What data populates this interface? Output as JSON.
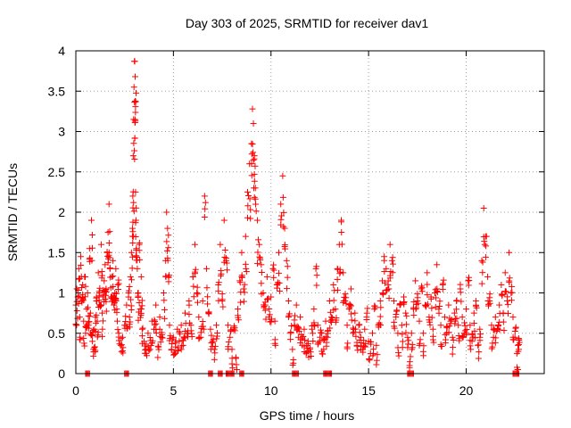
{
  "chart_data": {
    "type": "scatter",
    "title": "Day 303 of 2025, SRMTID for receiver dav1",
    "xlabel": "GPS time / hours",
    "ylabel": "SRMTID / TECUs",
    "xlim": [
      0,
      24
    ],
    "ylim": [
      0,
      4
    ],
    "xticks": [
      0,
      5,
      10,
      15,
      20
    ],
    "xtick_labels": [
      "0",
      "5",
      "10",
      "15",
      "20"
    ],
    "yticks": [
      0,
      0.5,
      1,
      1.5,
      2,
      2.5,
      3,
      3.5,
      4
    ],
    "ytick_labels": [
      "0",
      "0.5",
      "1",
      "1.5",
      "2",
      "2.5",
      "3",
      "3.5",
      "4"
    ],
    "grid": true,
    "marker": "+",
    "color": "#ff0000",
    "series": [
      {
        "name": "dav1",
        "points": [
          [
            0.0,
            0.85
          ],
          [
            0.05,
            1.05
          ],
          [
            0.1,
            0.95
          ],
          [
            0.15,
            1.3
          ],
          [
            0.2,
            0.7
          ],
          [
            0.25,
            1.45
          ],
          [
            0.3,
            0.9
          ],
          [
            0.35,
            1.1
          ],
          [
            0.4,
            0.65
          ],
          [
            0.45,
            1.2
          ],
          [
            0.5,
            0.5
          ],
          [
            0.55,
            0.8
          ],
          [
            0.6,
            1.0
          ],
          [
            0.65,
            0.6
          ],
          [
            0.7,
            1.55
          ],
          [
            0.75,
            0.75
          ],
          [
            0.8,
            1.9
          ],
          [
            0.85,
            0.4
          ],
          [
            0.9,
            0.3
          ],
          [
            0.95,
            0.55
          ],
          [
            1.0,
            0.7
          ],
          [
            1.05,
            0.9
          ],
          [
            1.1,
            0.65
          ],
          [
            1.15,
            1.25
          ],
          [
            1.2,
            1.0
          ],
          [
            1.25,
            0.85
          ],
          [
            1.3,
            1.6
          ],
          [
            1.35,
            0.75
          ],
          [
            1.4,
            0.95
          ],
          [
            1.45,
            1.15
          ],
          [
            1.5,
            1.35
          ],
          [
            1.55,
            1.05
          ],
          [
            1.6,
            1.5
          ],
          [
            1.65,
            1.75
          ],
          [
            1.7,
            2.1
          ],
          [
            1.75,
            1.3
          ],
          [
            1.8,
            0.95
          ],
          [
            1.85,
            1.2
          ],
          [
            1.9,
            1.4
          ],
          [
            1.95,
            0.85
          ],
          [
            2.0,
            1.0
          ],
          [
            2.05,
            1.3
          ],
          [
            2.1,
            0.8
          ],
          [
            2.15,
            1.1
          ],
          [
            2.2,
            0.5
          ],
          [
            2.3,
            0.35
          ],
          [
            2.4,
            0.45
          ],
          [
            2.5,
            0.6
          ],
          [
            2.6,
            0.85
          ],
          [
            2.7,
            1.0
          ],
          [
            2.75,
            0.7
          ],
          [
            2.8,
            1.2
          ],
          [
            2.85,
            1.5
          ],
          [
            2.9,
            1.8
          ],
          [
            2.92,
            2.2
          ],
          [
            2.94,
            2.7
          ],
          [
            2.96,
            3.15
          ],
          [
            2.98,
            3.55
          ],
          [
            3.0,
            3.87
          ],
          [
            3.02,
            3.87
          ],
          [
            3.04,
            3.68
          ],
          [
            3.06,
            2.25
          ],
          [
            3.08,
            1.9
          ],
          [
            3.1,
            1.55
          ],
          [
            3.15,
            1.3
          ],
          [
            3.2,
            1.0
          ],
          [
            3.25,
            1.6
          ],
          [
            3.3,
            0.8
          ],
          [
            3.35,
            1.2
          ],
          [
            3.4,
            0.55
          ],
          [
            3.5,
            0.4
          ],
          [
            3.6,
            0.25
          ],
          [
            3.7,
            0.5
          ],
          [
            3.8,
            0.3
          ],
          [
            3.9,
            0.65
          ],
          [
            4.0,
            0.55
          ],
          [
            4.1,
            0.85
          ],
          [
            4.2,
            0.2
          ],
          [
            4.3,
            0.7
          ],
          [
            4.4,
            0.45
          ],
          [
            4.5,
            1.0
          ],
          [
            4.6,
            1.4
          ],
          [
            4.65,
            2.0
          ],
          [
            4.7,
            1.8
          ],
          [
            4.75,
            1.2
          ],
          [
            4.8,
            0.6
          ],
          [
            4.9,
            0.3
          ],
          [
            5.0,
            0.45
          ],
          [
            5.1,
            0.25
          ],
          [
            5.2,
            0.55
          ],
          [
            5.3,
            0.4
          ],
          [
            5.4,
            0.6
          ],
          [
            5.5,
            0.35
          ],
          [
            5.6,
            0.75
          ],
          [
            5.7,
            0.5
          ],
          [
            5.8,
            0.9
          ],
          [
            5.9,
            0.6
          ],
          [
            6.0,
            1.2
          ],
          [
            6.1,
            1.6
          ],
          [
            6.2,
            1.0
          ],
          [
            6.3,
            0.7
          ],
          [
            6.4,
            0.45
          ],
          [
            6.5,
            0.9
          ],
          [
            6.6,
            2.2
          ],
          [
            6.7,
            1.3
          ],
          [
            6.8,
            0.75
          ],
          [
            6.9,
            0.55
          ],
          [
            7.0,
            0.4
          ],
          [
            7.1,
            0.3
          ],
          [
            7.2,
            0.6
          ],
          [
            7.3,
            1.1
          ],
          [
            7.4,
            1.6
          ],
          [
            7.5,
            0.9
          ],
          [
            7.6,
            1.9
          ],
          [
            7.7,
            1.4
          ],
          [
            7.8,
            0.6
          ],
          [
            7.9,
            0.45
          ],
          [
            8.0,
            0.3
          ],
          [
            8.1,
            0.55
          ],
          [
            8.2,
            0.2
          ],
          [
            8.3,
            0.8
          ],
          [
            8.4,
            1.15
          ],
          [
            8.5,
            1.5
          ],
          [
            8.6,
            1.05
          ],
          [
            8.7,
            1.7
          ],
          [
            8.8,
            2.25
          ],
          [
            8.9,
            2.6
          ],
          [
            9.0,
            2.85
          ],
          [
            9.05,
            3.28
          ],
          [
            9.1,
            3.1
          ],
          [
            9.15,
            2.7
          ],
          [
            9.2,
            2.3
          ],
          [
            9.3,
            1.9
          ],
          [
            9.4,
            1.6
          ],
          [
            9.5,
            1.35
          ],
          [
            9.6,
            1.0
          ],
          [
            9.7,
            0.85
          ],
          [
            9.8,
            1.2
          ],
          [
            9.9,
            0.7
          ],
          [
            10.0,
            0.95
          ],
          [
            10.1,
            1.3
          ],
          [
            10.2,
            0.65
          ],
          [
            10.3,
            1.1
          ],
          [
            10.4,
            1.5
          ],
          [
            10.5,
            2.1
          ],
          [
            10.6,
            2.45
          ],
          [
            10.7,
            1.8
          ],
          [
            10.8,
            1.4
          ],
          [
            10.9,
            0.9
          ],
          [
            11.0,
            0.5
          ],
          [
            11.1,
            0.3
          ],
          [
            11.2,
            0.6
          ],
          [
            11.3,
            0.85
          ],
          [
            11.4,
            0.45
          ],
          [
            11.5,
            0.7
          ],
          [
            11.6,
            0.35
          ],
          [
            11.7,
            0.55
          ],
          [
            11.8,
            0.25
          ],
          [
            11.9,
            0.4
          ],
          [
            12.0,
            0.3
          ],
          [
            12.1,
            0.55
          ],
          [
            12.2,
            0.8
          ],
          [
            12.3,
            1.3
          ],
          [
            12.4,
            0.6
          ],
          [
            12.5,
            0.4
          ],
          [
            12.6,
            0.5
          ],
          [
            12.7,
            0.3
          ],
          [
            12.8,
            0.65
          ],
          [
            12.9,
            0.45
          ],
          [
            13.0,
            0.9
          ],
          [
            13.1,
            0.7
          ],
          [
            13.2,
            1.1
          ],
          [
            13.3,
            0.8
          ],
          [
            13.4,
            1.3
          ],
          [
            13.5,
            1.6
          ],
          [
            13.6,
            1.9
          ],
          [
            13.7,
            1.25
          ],
          [
            13.8,
            0.9
          ],
          [
            13.9,
            0.6
          ],
          [
            14.0,
            0.8
          ],
          [
            14.1,
            1.05
          ],
          [
            14.2,
            0.5
          ],
          [
            14.3,
            0.75
          ],
          [
            14.4,
            0.35
          ],
          [
            14.5,
            0.6
          ],
          [
            14.6,
            0.45
          ],
          [
            14.7,
            0.3
          ],
          [
            14.8,
            0.55
          ],
          [
            14.9,
            0.7
          ],
          [
            15.0,
            0.4
          ],
          [
            15.1,
            0.25
          ],
          [
            15.2,
            0.5
          ],
          [
            15.3,
            0.8
          ],
          [
            15.4,
            0.35
          ],
          [
            15.5,
            0.6
          ],
          [
            15.6,
            0.9
          ],
          [
            15.7,
            1.15
          ],
          [
            15.8,
            1.45
          ],
          [
            15.9,
            1.3
          ],
          [
            16.0,
            1.1
          ],
          [
            16.1,
            1.6
          ],
          [
            16.2,
            1.4
          ],
          [
            16.3,
            0.9
          ],
          [
            16.4,
            0.7
          ],
          [
            16.5,
            0.5
          ],
          [
            16.6,
            0.85
          ],
          [
            16.7,
            0.6
          ],
          [
            16.8,
            0.95
          ],
          [
            16.9,
            0.75
          ],
          [
            17.0,
            0.45
          ],
          [
            17.1,
            0.1
          ],
          [
            17.2,
            0.5
          ],
          [
            17.3,
            0.8
          ],
          [
            17.4,
            1.15
          ],
          [
            17.5,
            0.9
          ],
          [
            17.6,
            0.65
          ],
          [
            17.7,
            1.05
          ],
          [
            17.8,
            0.5
          ],
          [
            17.9,
            0.85
          ],
          [
            18.0,
            1.25
          ],
          [
            18.1,
            0.7
          ],
          [
            18.2,
            0.95
          ],
          [
            18.3,
            0.55
          ],
          [
            18.4,
            1.0
          ],
          [
            18.5,
            1.35
          ],
          [
            18.6,
            0.8
          ],
          [
            18.7,
            0.6
          ],
          [
            18.8,
            1.1
          ],
          [
            18.9,
            0.7
          ],
          [
            19.0,
            0.5
          ],
          [
            19.1,
            0.85
          ],
          [
            19.2,
            0.65
          ],
          [
            19.3,
            0.45
          ],
          [
            19.4,
            0.75
          ],
          [
            19.5,
            0.9
          ],
          [
            19.6,
            0.6
          ],
          [
            19.7,
            1.05
          ],
          [
            19.8,
            0.7
          ],
          [
            19.9,
            0.5
          ],
          [
            20.0,
            0.8
          ],
          [
            20.1,
            1.15
          ],
          [
            20.2,
            0.6
          ],
          [
            20.3,
            0.4
          ],
          [
            20.4,
            0.75
          ],
          [
            20.5,
            0.9
          ],
          [
            20.6,
            0.35
          ],
          [
            20.7,
            0.55
          ],
          [
            20.8,
            1.4
          ],
          [
            20.9,
            2.05
          ],
          [
            21.0,
            1.7
          ],
          [
            21.1,
            1.2
          ],
          [
            21.2,
            0.9
          ],
          [
            21.3,
            0.6
          ],
          [
            21.4,
            0.45
          ],
          [
            21.5,
            0.7
          ],
          [
            21.6,
            0.55
          ],
          [
            21.7,
            0.85
          ],
          [
            21.8,
            1.1
          ],
          [
            21.9,
            0.75
          ],
          [
            22.0,
            1.25
          ],
          [
            22.1,
            0.9
          ],
          [
            22.2,
            1.5
          ],
          [
            22.3,
            1.0
          ],
          [
            22.4,
            0.7
          ],
          [
            22.5,
            0.45
          ],
          [
            22.6,
            0.25
          ],
          [
            22.65,
            0.35
          ],
          [
            22.7,
            0.3
          ]
        ]
      }
    ],
    "zero_band": {
      "y": 0,
      "x_ranges": [
        [
          0.5,
          0.7
        ],
        [
          2.5,
          2.7
        ],
        [
          6.8,
          7.0
        ],
        [
          7.3,
          7.5
        ],
        [
          7.7,
          8.1
        ],
        [
          8.4,
          8.6
        ],
        [
          11.1,
          11.4
        ],
        [
          12.7,
          13.1
        ],
        [
          17.0,
          17.3
        ],
        [
          22.4,
          22.7
        ]
      ]
    }
  }
}
